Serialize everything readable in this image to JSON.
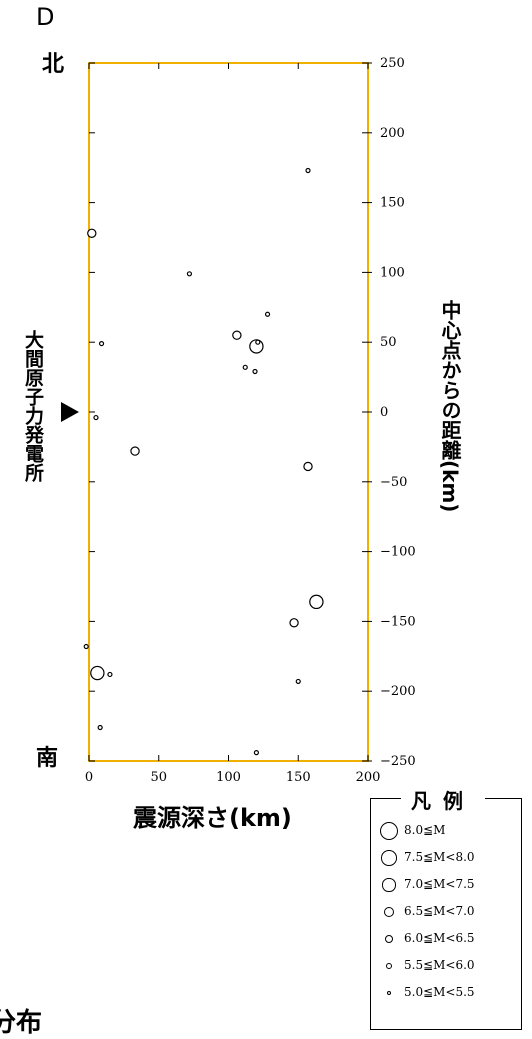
{
  "section_letter": "D",
  "north_label": "北",
  "south_label": "南",
  "site_label": "大間原子力発電所",
  "footer_text": "分布",
  "legend": {
    "title": "凡例",
    "entries": [
      {
        "label": "8.0≦M"
      },
      {
        "label": "7.5≦M<8.0"
      },
      {
        "label": "7.0≦M<7.5"
      },
      {
        "label": "6.5≦M<7.0"
      },
      {
        "label": "6.0≦M<6.5"
      },
      {
        "label": "5.5≦M<6.0"
      },
      {
        "label": "5.0≦M<5.5"
      }
    ]
  },
  "colors": {
    "frame": "#f0b000",
    "marker": "#000000"
  },
  "chart_data": {
    "type": "scatter",
    "xlabel": "震源深さ(km)",
    "ylabel": "中心点からの距離(km)",
    "xlim": [
      0,
      200
    ],
    "ylim": [
      -250,
      250
    ],
    "xticks": [
      "0",
      "50",
      "100",
      "150",
      "200"
    ],
    "yticks": [
      "250",
      "200",
      "150",
      "100",
      "50",
      "0",
      "−50",
      "−100",
      "−150",
      "−200",
      "−250"
    ],
    "site_marker_y": 0,
    "points": [
      {
        "x": 157,
        "y": 173,
        "class": "5.0≦M<5.5"
      },
      {
        "x": 2,
        "y": 128,
        "class": "6.0≦M<6.5"
      },
      {
        "x": 72,
        "y": 99,
        "class": "5.0≦M<5.5"
      },
      {
        "x": 128,
        "y": 70,
        "class": "5.0≦M<5.5"
      },
      {
        "x": 106,
        "y": 55,
        "class": "6.0≦M<6.5"
      },
      {
        "x": 120,
        "y": 47,
        "class": "7.0≦M<7.5"
      },
      {
        "x": 121,
        "y": 50,
        "class": "5.0≦M<5.5"
      },
      {
        "x": 9,
        "y": 49,
        "class": "5.0≦M<5.5"
      },
      {
        "x": 112,
        "y": 32,
        "class": "5.0≦M<5.5"
      },
      {
        "x": 119,
        "y": 29,
        "class": "5.0≦M<5.5"
      },
      {
        "x": 5,
        "y": -4,
        "class": "5.0≦M<5.5"
      },
      {
        "x": 33,
        "y": -28,
        "class": "6.0≦M<6.5"
      },
      {
        "x": 157,
        "y": -39,
        "class": "6.0≦M<6.5"
      },
      {
        "x": 163,
        "y": -136,
        "class": "7.0≦M<7.5"
      },
      {
        "x": 147,
        "y": -151,
        "class": "6.0≦M<6.5"
      },
      {
        "x": -2,
        "y": -168,
        "class": "5.0≦M<5.5"
      },
      {
        "x": 6,
        "y": -187,
        "class": "7.0≦M<7.5"
      },
      {
        "x": 15,
        "y": -188,
        "class": "5.0≦M<5.5"
      },
      {
        "x": 150,
        "y": -193,
        "class": "5.0≦M<5.5"
      },
      {
        "x": 8,
        "y": -226,
        "class": "5.0≦M<5.5"
      },
      {
        "x": 120,
        "y": -244,
        "class": "5.0≦M<5.5"
      }
    ]
  }
}
